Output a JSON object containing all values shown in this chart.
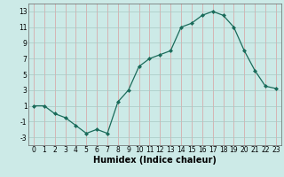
{
  "x": [
    0,
    1,
    2,
    3,
    4,
    5,
    6,
    7,
    8,
    9,
    10,
    11,
    12,
    13,
    14,
    15,
    16,
    17,
    18,
    19,
    20,
    21,
    22,
    23
  ],
  "y": [
    1,
    1,
    0,
    -0.5,
    -1.5,
    -2.5,
    -2,
    -2.5,
    1.5,
    3,
    6,
    7,
    7.5,
    8,
    11,
    11.5,
    12.5,
    13,
    12.5,
    11,
    8,
    5.5,
    3.5,
    3.2
  ],
  "line_color": "#1a6b5a",
  "marker_color": "#1a6b5a",
  "bg_color": "#cceae7",
  "grid_color_x": "#d8a0a0",
  "grid_color_y": "#a8c8c4",
  "xlabel": "Humidex (Indice chaleur)",
  "xlabel_fontsize": 7,
  "xticks": [
    0,
    1,
    2,
    3,
    4,
    5,
    6,
    7,
    8,
    9,
    10,
    11,
    12,
    13,
    14,
    15,
    16,
    17,
    18,
    19,
    20,
    21,
    22,
    23
  ],
  "yticks": [
    -3,
    -1,
    1,
    3,
    5,
    7,
    9,
    11,
    13
  ],
  "ylim": [
    -4,
    14
  ],
  "xlim": [
    -0.5,
    23.5
  ],
  "tick_fontsize": 5.5
}
